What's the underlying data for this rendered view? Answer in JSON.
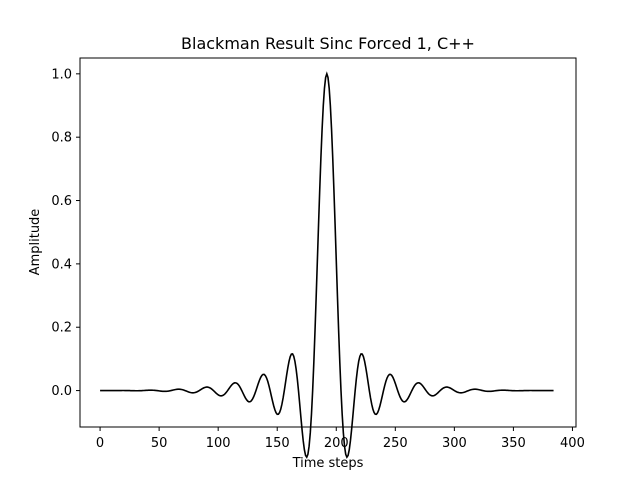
{
  "chart_data": {
    "type": "line",
    "title": "Blackman Result Sinc Forced 1, C++",
    "xlabel": "Time steps",
    "ylabel": "Amplitude",
    "xlim": [
      -17,
      403
    ],
    "ylim": [
      -0.115,
      1.05
    ],
    "xticks": [
      0,
      50,
      100,
      150,
      200,
      250,
      300,
      350,
      400
    ],
    "yticks": [
      0.0,
      0.2,
      0.4,
      0.6,
      0.8,
      1.0
    ],
    "ytick_labels": [
      "0.0",
      "0.2",
      "0.4",
      "0.6",
      "0.8",
      "1.0"
    ],
    "grid": false,
    "legend": "none",
    "series": [
      {
        "color": "#000000",
        "x": [
          0,
          12,
          24,
          36,
          48,
          60,
          72,
          84,
          96,
          108,
          120,
          132,
          144,
          150,
          156,
          162,
          168,
          174,
          180,
          184,
          188,
          190,
          192,
          194,
          196,
          200,
          204,
          210,
          216,
          222,
          228,
          234,
          240,
          252,
          264,
          276,
          288,
          300,
          312,
          324,
          336,
          348,
          360,
          372,
          384
        ],
        "y": [
          0.005,
          0.004,
          0.004,
          0.004,
          0.005,
          0.006,
          0.007,
          0.009,
          0.011,
          0.014,
          0.017,
          0.021,
          0.026,
          0.03,
          0.034,
          0.04,
          0.048,
          0.064,
          -0.11,
          0.12,
          0.5,
          0.56,
          1.0,
          0.56,
          0.5,
          -0.11,
          0.12,
          0.064,
          0.048,
          0.04,
          0.034,
          0.03,
          0.026,
          0.021,
          0.017,
          0.014,
          0.011,
          0.009,
          0.007,
          0.006,
          0.005,
          0.004,
          0.004,
          0.004,
          0.005
        ]
      }
    ]
  }
}
